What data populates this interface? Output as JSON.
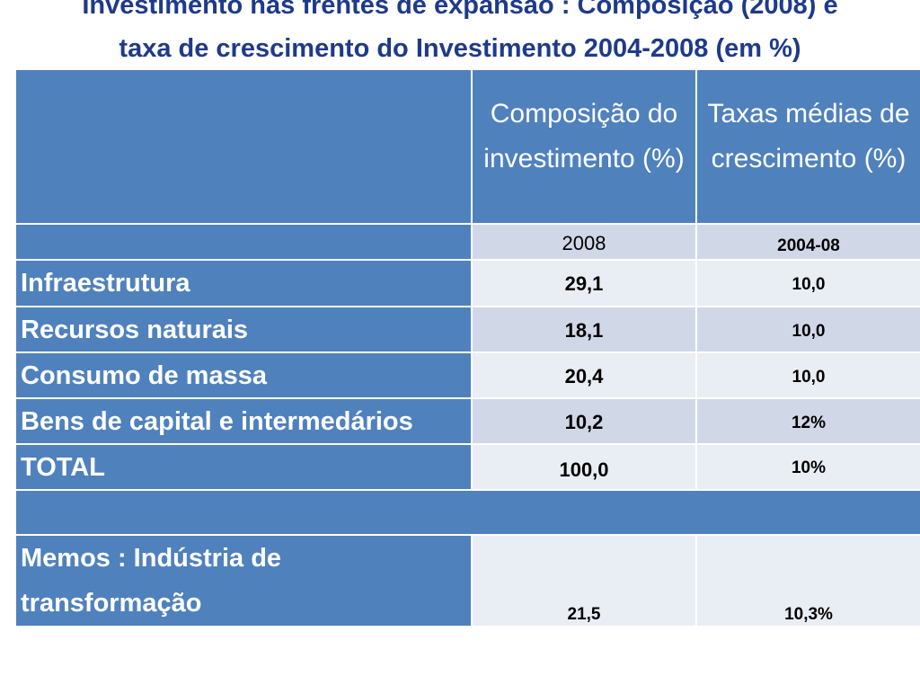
{
  "title": {
    "line1": "Investimento nas frentes de expansão : Composição (2008) e",
    "line2": "taxa de crescimento do Investimento 2004-2008 (em %)"
  },
  "table": {
    "header": [
      "Composição do investimento (%)",
      "Taxas médias de crescimento (%)"
    ],
    "subheader": [
      "2008",
      "2004-08"
    ],
    "rows": [
      [
        "Infraestrutura",
        "29,1",
        "10,0"
      ],
      [
        "Recursos naturais",
        "18,1",
        "10,0"
      ],
      [
        "Consumo de massa",
        "20,4",
        "10,0"
      ],
      [
        "Bens de capital e intermedários",
        "10,2",
        "12%"
      ],
      [
        "TOTAL",
        "100,0",
        "10%"
      ]
    ],
    "memo": [
      "Memos : Indústria de transformação",
      "21,5",
      "10,3%"
    ]
  }
}
